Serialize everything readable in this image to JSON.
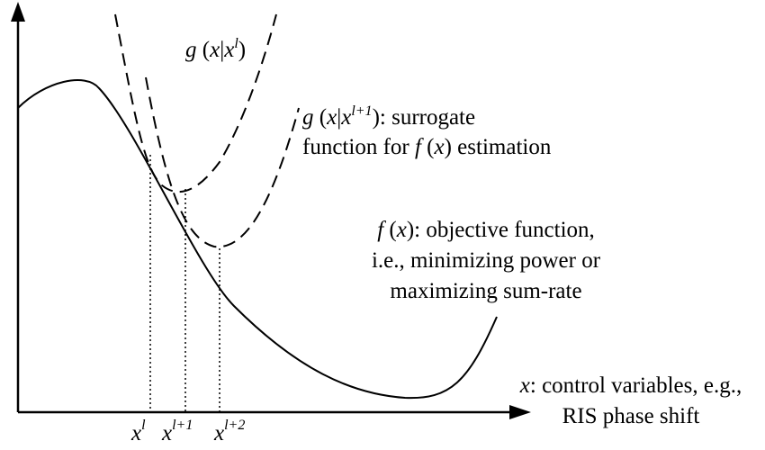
{
  "diagram": {
    "colors": {
      "ink": "#000000",
      "background": "#ffffff"
    },
    "labels": {
      "g_l": {
        "g": "g",
        "open": " (",
        "x": "x",
        "bar": "|",
        "xs": "x",
        "sup": "l",
        "close": ")"
      },
      "g_l1": {
        "g": "g",
        "open": " (",
        "x": "x",
        "bar": "|",
        "xs": "x",
        "sup": "l+1",
        "close": "): surrogate"
      },
      "g_l1_line2": {
        "pre": "function for ",
        "f": "f",
        "open": " (",
        "x": "x",
        "close": ") estimation"
      },
      "f_line1": {
        "f": "f",
        "open": " (",
        "x": "x",
        "close": "): objective function,"
      },
      "f_line2": "i.e., minimizing power or",
      "f_line3": "maximizing sum-rate",
      "x_line1": {
        "x": "x",
        "rest": ": control variables, e.g.,"
      },
      "x_line2": "RIS phase shift",
      "ticks": [
        {
          "x": "x",
          "sup": "l"
        },
        {
          "x": "x",
          "sup": "l+1"
        },
        {
          "x": "x",
          "sup": "l+2"
        }
      ]
    }
  }
}
